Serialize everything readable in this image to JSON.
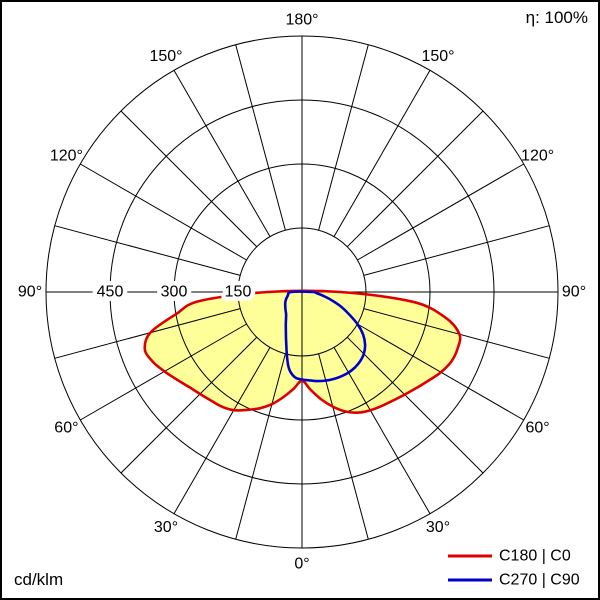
{
  "page": {
    "background": "#ffffff",
    "border_color": "#000000"
  },
  "header": {
    "efficiency": "η: 100%"
  },
  "footer": {
    "unit": "cd/klm"
  },
  "chart_data": {
    "type": "polar",
    "subtype": "luminous-intensity-distribution",
    "units": "cd/klm",
    "efficiency": "η: 100%",
    "gamma_step_deg": 15,
    "radial_max": 600,
    "grid_color": "#000000",
    "radial_ticks": [
      {
        "value": 150,
        "label": "150"
      },
      {
        "value": 300,
        "label": "300"
      },
      {
        "value": 450,
        "label": "450"
      }
    ],
    "angle_labels": [
      {
        "deg": 0,
        "label": "0°"
      },
      {
        "deg": 30,
        "label": "30°"
      },
      {
        "deg": 60,
        "label": "60°"
      },
      {
        "deg": 90,
        "label": "90°"
      },
      {
        "deg": 120,
        "label": "120°"
      },
      {
        "deg": 150,
        "label": "150°"
      },
      {
        "deg": 180,
        "label": "180°"
      }
    ],
    "series": [
      {
        "name": "C180 | C0",
        "color": "#dd0000",
        "fill": "#ffff99",
        "angles_deg": [
          -90,
          -85,
          -80,
          -75,
          -70,
          -65,
          -60,
          -55,
          -50,
          -45,
          -40,
          -35,
          -30,
          -25,
          -20,
          -15,
          -10,
          -5,
          0,
          5,
          10,
          15,
          20,
          25,
          30,
          35,
          40,
          45,
          50,
          55,
          60,
          65,
          70,
          75,
          80,
          85,
          90
        ],
        "values_cd_per_klm": [
          80,
          240,
          300,
          368,
          392,
          386,
          372,
          358,
          346,
          338,
          332,
          328,
          320,
          305,
          290,
          272,
          250,
          228,
          208,
          230,
          255,
          278,
          298,
          312,
          320,
          326,
          332,
          340,
          350,
          362,
          376,
          386,
          388,
          382,
          340,
          260,
          90
        ]
      },
      {
        "name": "C270 | C90",
        "color": "#0000cc",
        "fill": "none",
        "angles_deg": [
          -90,
          -75,
          -60,
          -45,
          -35,
          -25,
          -15,
          -10,
          -5,
          0,
          5,
          10,
          15,
          20,
          25,
          30,
          35,
          40,
          45,
          50,
          55,
          60,
          65,
          70,
          75,
          80,
          85,
          90
        ],
        "values_cd_per_klm": [
          25,
          35,
          45,
          55,
          65,
          90,
          140,
          180,
          200,
          205,
          208,
          212,
          215,
          217,
          218,
          218,
          216,
          212,
          205,
          193,
          175,
          150,
          120,
          95,
          70,
          50,
          35,
          25
        ]
      }
    ],
    "legend": [
      {
        "label": "C180 | C0",
        "color": "#dd0000"
      },
      {
        "label": "C270 | C90",
        "color": "#0000cc"
      }
    ]
  }
}
